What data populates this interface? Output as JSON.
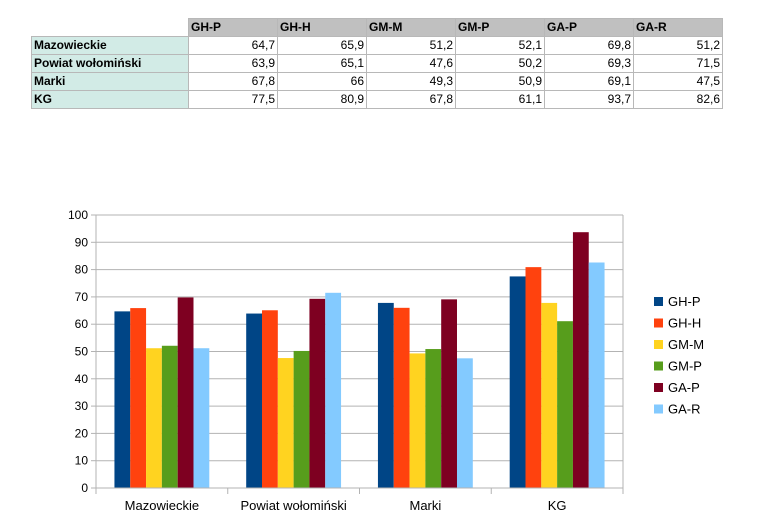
{
  "table": {
    "columns": [
      "GH-P",
      "GH-H",
      "GM-M",
      "GM-P",
      "GA-P",
      "GA-R"
    ],
    "rows": [
      {
        "label": "Mazowieckie",
        "values": [
          "64,7",
          "65,9",
          "51,2",
          "52,1",
          "69,8",
          "51,2"
        ]
      },
      {
        "label": "Powiat wołomiński",
        "values": [
          "63,9",
          "65,1",
          "47,6",
          "50,2",
          "69,3",
          "71,5"
        ]
      },
      {
        "label": "Marki",
        "values": [
          "67,8",
          "66",
          "49,3",
          "50,9",
          "69,1",
          "47,5"
        ]
      },
      {
        "label": "KG",
        "values": [
          "77,5",
          "80,9",
          "67,8",
          "61,1",
          "93,7",
          "82,6"
        ]
      }
    ]
  },
  "chart_data": {
    "type": "bar",
    "categories": [
      "Mazowieckie",
      "Powiat wołomiński",
      "Marki",
      "KG"
    ],
    "series": [
      {
        "name": "GH-P",
        "values": [
          64.7,
          63.9,
          67.8,
          77.5
        ],
        "color": "#004586"
      },
      {
        "name": "GH-H",
        "values": [
          65.9,
          65.1,
          66,
          80.9
        ],
        "color": "#ff420e"
      },
      {
        "name": "GM-M",
        "values": [
          51.2,
          47.6,
          49.3,
          67.8
        ],
        "color": "#ffd320"
      },
      {
        "name": "GM-P",
        "values": [
          52.1,
          50.2,
          50.9,
          61.1
        ],
        "color": "#579d1c"
      },
      {
        "name": "GA-P",
        "values": [
          69.8,
          69.3,
          69.1,
          93.7
        ],
        "color": "#7e0021"
      },
      {
        "name": "GA-R",
        "values": [
          51.2,
          71.5,
          47.5,
          82.6
        ],
        "color": "#83caff"
      }
    ],
    "ylim": [
      0,
      100
    ],
    "yticks": [
      "0",
      "10",
      "20",
      "30",
      "40",
      "50",
      "60",
      "70",
      "80",
      "90",
      "100"
    ],
    "grid": true,
    "legend": "right"
  }
}
